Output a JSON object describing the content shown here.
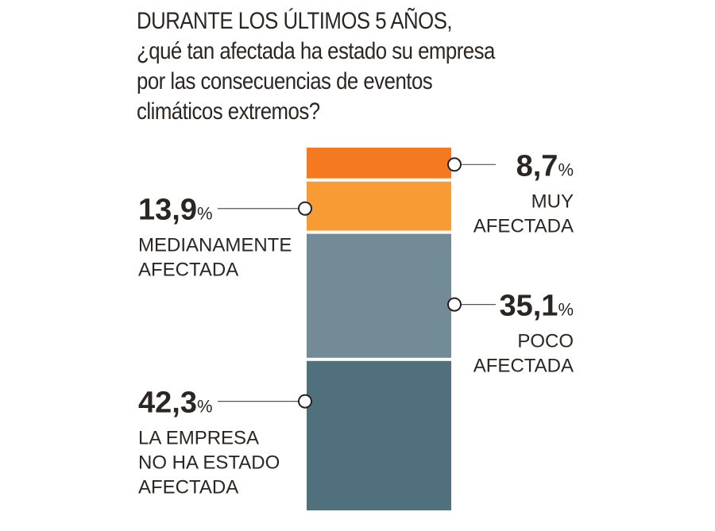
{
  "title_lines": [
    "DURANTE LOS ÚLTIMOS 5 AÑOS,",
    "¿qué tan afectada ha estado su empresa",
    "por las consecuencias de eventos",
    "climáticos extremos?"
  ],
  "chart_data": {
    "type": "bar",
    "stacked": true,
    "title": "DURANTE LOS ÚLTIMOS 5 AÑOS, ¿qué tan afectada ha estado su empresa por las consecuencias de eventos climáticos extremos?",
    "unit": "%",
    "segments": [
      {
        "id": "muy",
        "value": 8.7,
        "label_value": "8,7",
        "label_lines": [
          "MUY",
          "AFECTADA"
        ],
        "color": "#f47920",
        "side": "right"
      },
      {
        "id": "mediana",
        "value": 13.9,
        "label_value": "13,9",
        "label_lines": [
          "MEDIANAMENTE",
          "AFECTADA"
        ],
        "color": "#f99b34",
        "side": "left"
      },
      {
        "id": "poco",
        "value": 35.1,
        "label_value": "35,1",
        "label_lines": [
          "POCO",
          "AFECTADA"
        ],
        "color": "#728b96",
        "side": "right"
      },
      {
        "id": "no",
        "value": 42.3,
        "label_value": "42,3",
        "label_lines": [
          "LA EMPRESA",
          "NO HA ESTADO",
          "AFECTADA"
        ],
        "color": "#50707d",
        "side": "left"
      }
    ]
  }
}
